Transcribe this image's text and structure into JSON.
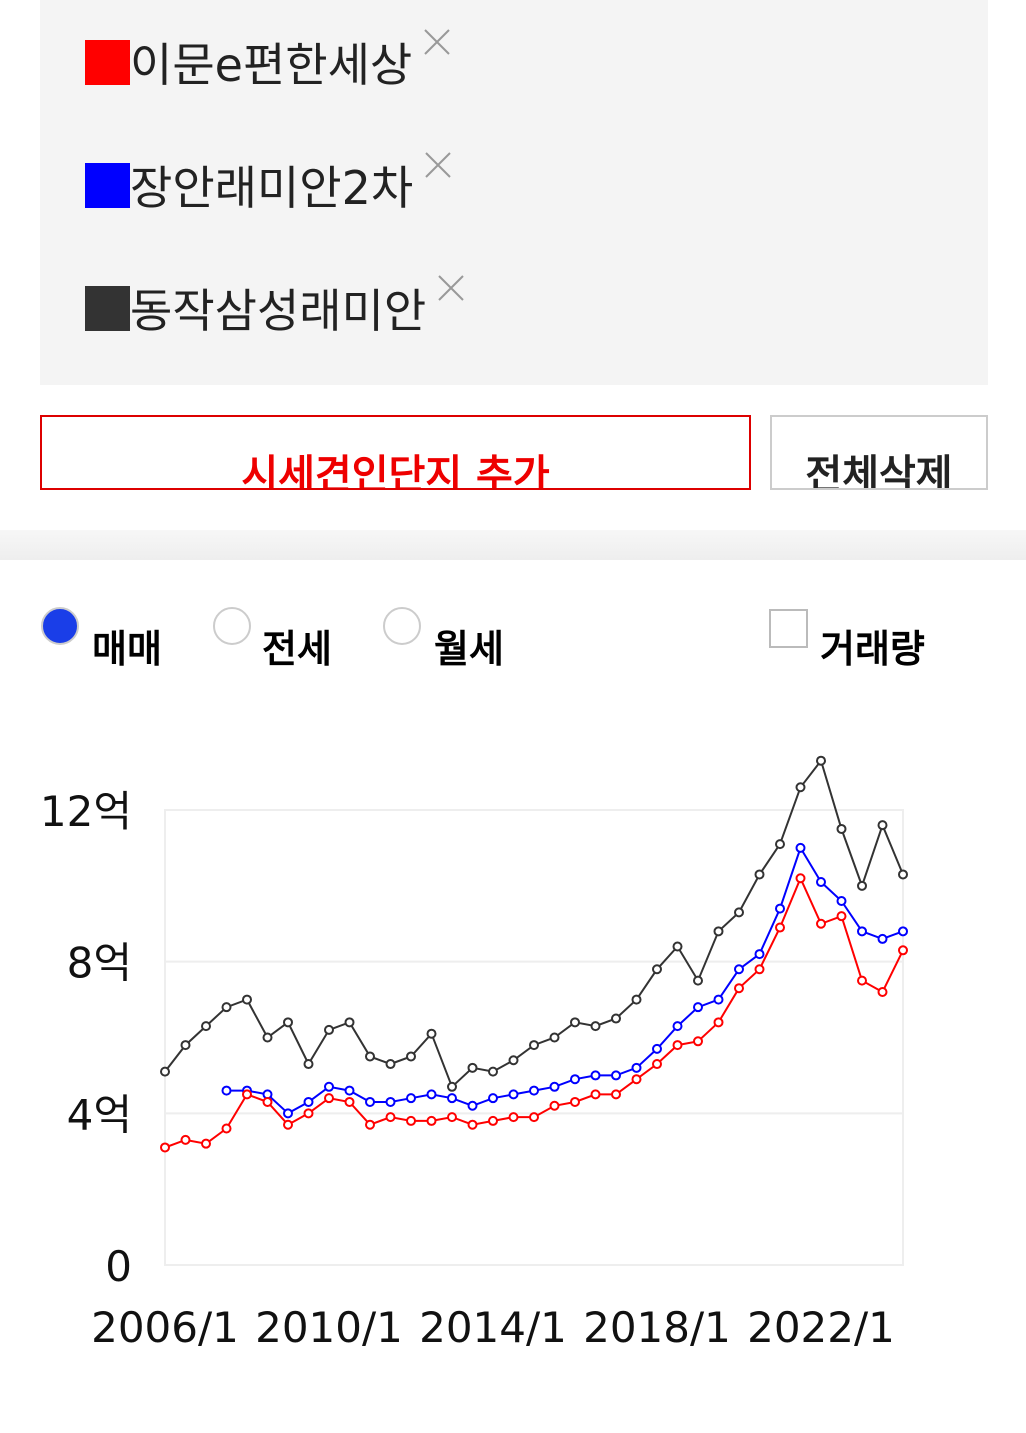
{
  "chart_data": {
    "type": "line",
    "x": [
      "2006/1",
      "2006/7",
      "2007/1",
      "2007/7",
      "2008/1",
      "2008/7",
      "2009/1",
      "2009/7",
      "2010/1",
      "2010/7",
      "2011/1",
      "2011/7",
      "2012/1",
      "2012/7",
      "2013/1",
      "2013/7",
      "2014/1",
      "2014/7",
      "2015/1",
      "2015/7",
      "2016/1",
      "2016/7",
      "2017/1",
      "2017/7",
      "2018/1",
      "2018/7",
      "2019/1",
      "2019/7",
      "2020/1",
      "2020/7",
      "2021/1",
      "2021/7",
      "2022/1",
      "2022/7",
      "2023/1",
      "2023/7",
      "2024/1"
    ],
    "series": [
      {
        "name": "이문e편한세상",
        "color": "#ff0000",
        "values": [
          3.1,
          3.3,
          3.2,
          3.6,
          4.5,
          4.3,
          3.7,
          4.0,
          4.4,
          4.3,
          3.7,
          3.9,
          3.8,
          3.8,
          3.9,
          3.7,
          3.8,
          3.9,
          3.9,
          4.2,
          4.3,
          4.5,
          4.5,
          4.9,
          5.3,
          5.8,
          5.9,
          6.4,
          7.3,
          7.8,
          8.9,
          10.2,
          9.0,
          9.2,
          7.5,
          7.2,
          8.3
        ]
      },
      {
        "name": "장안래미안2차",
        "color": "#0000ff",
        "values": [
          null,
          null,
          null,
          4.6,
          4.6,
          4.5,
          4.0,
          4.3,
          4.7,
          4.6,
          4.3,
          4.3,
          4.4,
          4.5,
          4.4,
          4.2,
          4.4,
          4.5,
          4.6,
          4.7,
          4.9,
          5.0,
          5.0,
          5.2,
          5.7,
          6.3,
          6.8,
          7.0,
          7.8,
          8.2,
          9.4,
          11.0,
          10.1,
          9.6,
          8.8,
          8.6,
          8.8
        ]
      },
      {
        "name": "동작삼성래미안",
        "color": "#333333",
        "values": [
          5.1,
          5.8,
          6.3,
          6.8,
          7.0,
          6.0,
          6.4,
          5.3,
          6.2,
          6.4,
          5.5,
          5.3,
          5.5,
          6.1,
          4.7,
          5.2,
          5.1,
          5.4,
          5.8,
          6.0,
          6.4,
          6.3,
          6.5,
          7.0,
          7.8,
          8.4,
          7.5,
          8.8,
          9.3,
          10.3,
          11.1,
          12.6,
          13.3,
          11.5,
          10.0,
          11.6,
          10.3
        ]
      }
    ],
    "xlim": [
      "2006/1",
      "2024/1"
    ],
    "xticks": [
      "2006/1",
      "2010/1",
      "2014/1",
      "2018/1",
      "2022/1"
    ],
    "ylim": [
      0,
      12
    ],
    "yticks": [
      0,
      {
        "value": 4,
        "label": "4억"
      },
      {
        "value": 8,
        "label": "8억"
      },
      {
        "value": 12,
        "label": "12억"
      }
    ],
    "grid": true
  },
  "controls": {
    "add_button": "시세견인단지 추가",
    "delete_all_button": "전체삭제",
    "options": [
      "매매",
      "전세",
      "월세"
    ],
    "volume_checkbox": "거래량"
  }
}
